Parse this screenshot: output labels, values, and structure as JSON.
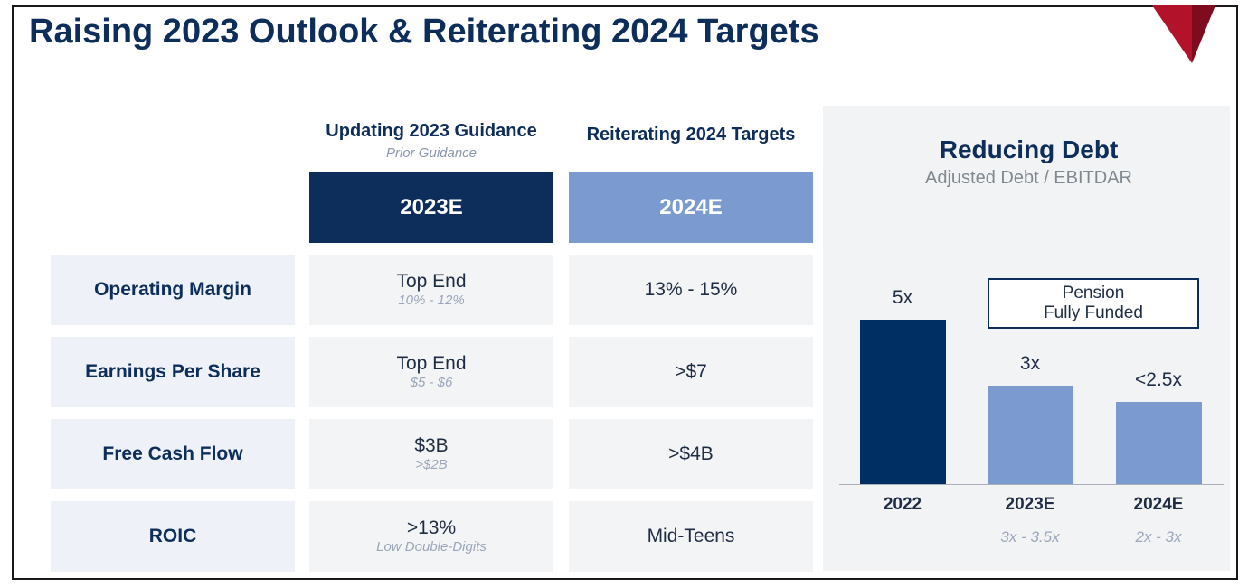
{
  "title": "Raising 2023 Outlook & Reiterating 2024 Targets",
  "columns": {
    "c2023": {
      "heading": "Updating 2023 Guidance",
      "subheading": "Prior Guidance",
      "band": "2023E",
      "color": "#0d2d5a"
    },
    "c2024": {
      "heading": "Reiterating 2024 Targets",
      "band": "2024E",
      "color": "#7b9bd0"
    }
  },
  "rows": [
    {
      "label": "Operating Margin",
      "v2023": "Top End",
      "prior2023": "10% - 12%",
      "v2024": "13% - 15%"
    },
    {
      "label": "Earnings Per Share",
      "v2023": "Top End",
      "prior2023": "$5 - $6",
      "v2024": ">$7"
    },
    {
      "label": "Free Cash Flow",
      "v2023": "$3B",
      "prior2023": ">$2B",
      "v2024": ">$4B"
    },
    {
      "label": "ROIC",
      "v2023": ">13%",
      "prior2023": "Low Double-Digits",
      "v2024": "Mid-Teens"
    }
  ],
  "debt_panel": {
    "title": "Reducing Debt",
    "subtitle": "Adjusted Debt / EBITDAR",
    "callout_line1": "Pension",
    "callout_line2": "Fully Funded"
  },
  "chart_data": {
    "type": "bar",
    "title": "Reducing Debt",
    "subtitle": "Adjusted Debt / EBITDAR",
    "categories": [
      "2022",
      "2023E",
      "2024E"
    ],
    "values": [
      5,
      3,
      2.5
    ],
    "value_labels": [
      "5x",
      "3x",
      "<2.5x"
    ],
    "ranges": [
      "",
      "3x - 3.5x",
      "2x - 3x"
    ],
    "colors": [
      "#002f63",
      "#7b9bd0",
      "#7b9bd0"
    ],
    "ylim": [
      0,
      5.5
    ],
    "grid": false,
    "legend": "none"
  }
}
